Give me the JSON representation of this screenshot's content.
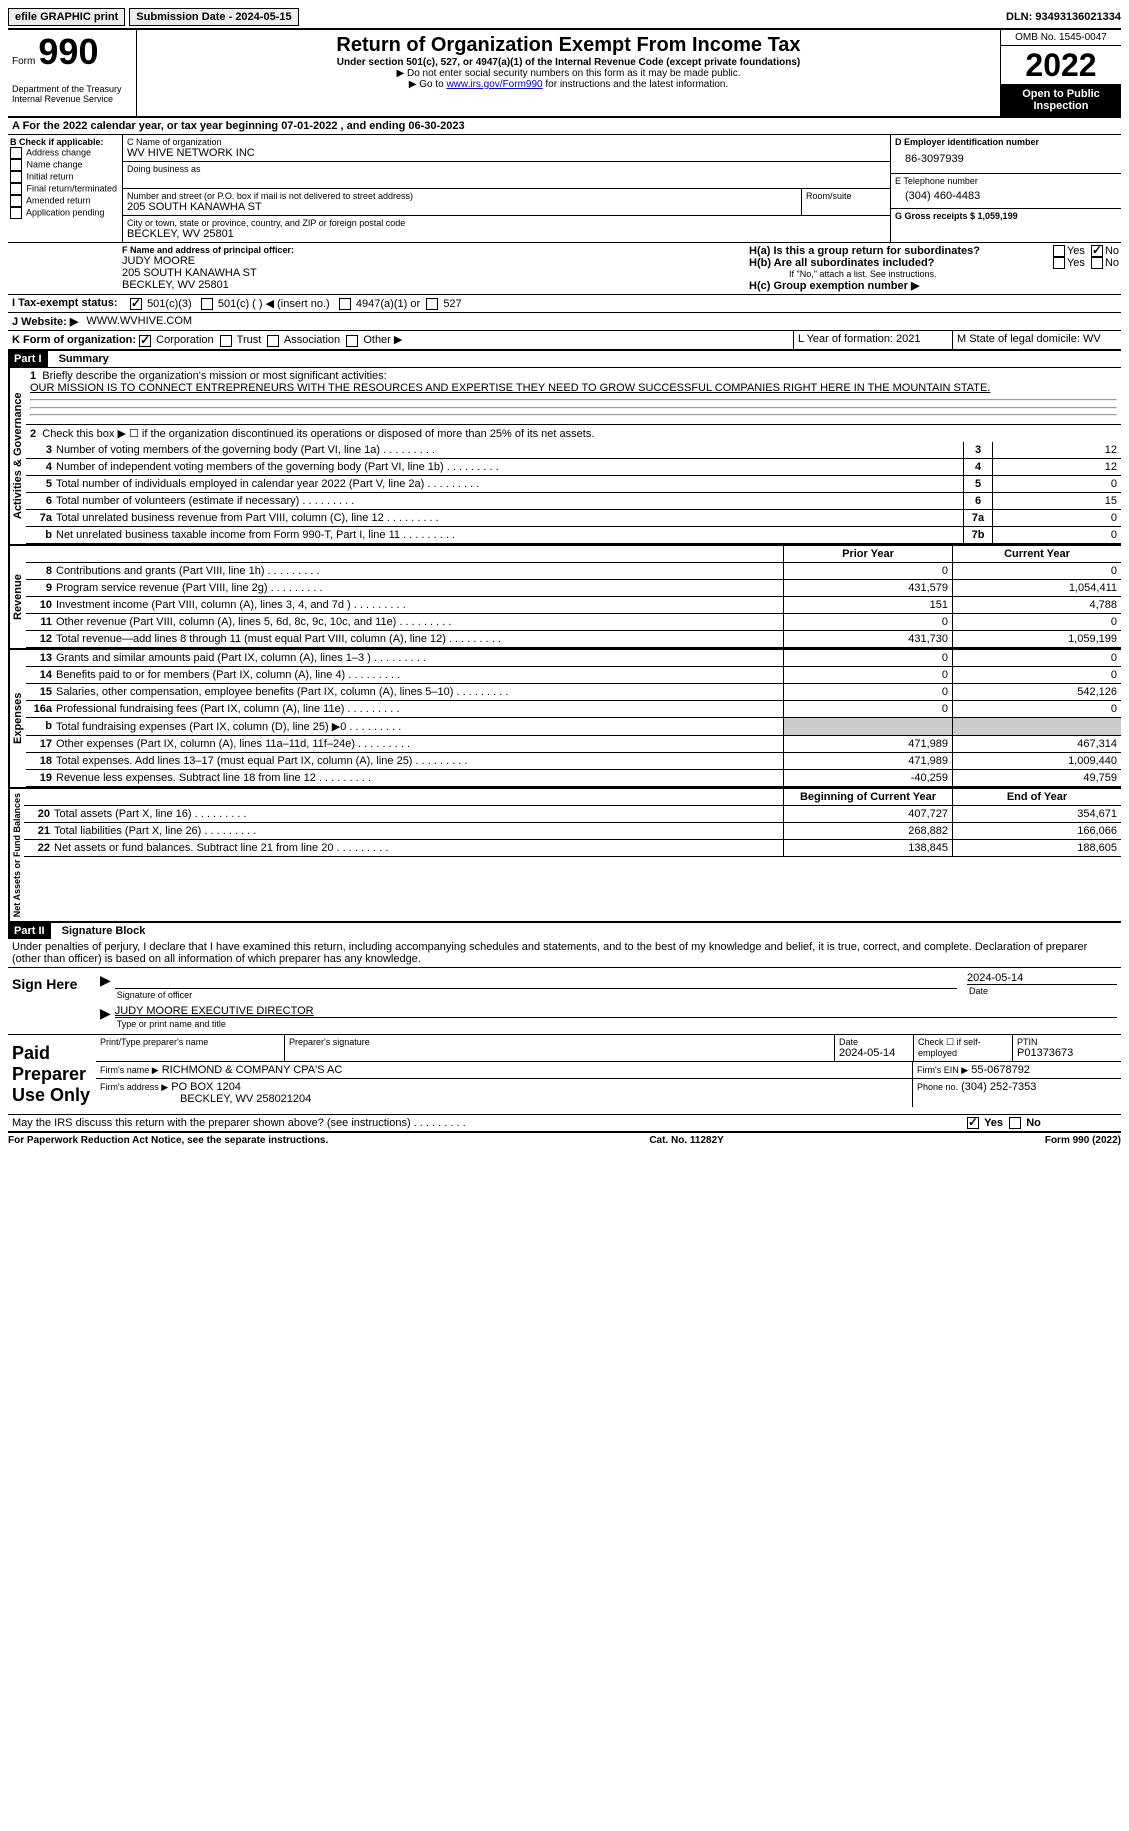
{
  "topbar": {
    "efile": "efile GRAPHIC print",
    "submission_label": "Submission Date - 2024-05-15",
    "dln_label": "DLN: 93493136021334"
  },
  "header": {
    "form_label": "Form",
    "form_number": "990",
    "dept1": "Department of the Treasury",
    "dept2": "Internal Revenue Service",
    "title": "Return of Organization Exempt From Income Tax",
    "sub1": "Under section 501(c), 527, or 4947(a)(1) of the Internal Revenue Code (except private foundations)",
    "sub2": "▶ Do not enter social security numbers on this form as it may be made public.",
    "sub3_pre": "▶ Go to ",
    "sub3_link": "www.irs.gov/Form990",
    "sub3_post": " for instructions and the latest information.",
    "omb": "OMB No. 1545-0047",
    "year": "2022",
    "otp": "Open to Public Inspection"
  },
  "sectionA": {
    "line_a": "A For the 2022 calendar year, or tax year beginning 07-01-2022     , and ending 06-30-2023",
    "b_label": "B Check if applicable:",
    "b_opts": [
      "Address change",
      "Name change",
      "Initial return",
      "Final return/terminated",
      "Amended return",
      "Application pending"
    ],
    "c_label": "C Name of organization",
    "c_name": "WV HIVE NETWORK INC",
    "dba_label": "Doing business as",
    "addr_label": "Number and street (or P.O. box if mail is not delivered to street address)",
    "addr": "205 SOUTH KANAWHA ST",
    "room_label": "Room/suite",
    "city_label": "City or town, state or province, country, and ZIP or foreign postal code",
    "city": "BECKLEY, WV  25801",
    "d_label": "D Employer identification number",
    "d_val": "86-3097939",
    "e_label": "E Telephone number",
    "e_val": "(304) 460-4483",
    "g_label": "G Gross receipts $ 1,059,199",
    "f_label": "F  Name and address of principal officer:",
    "f_name": "JUDY MOORE",
    "f_addr1": "205 SOUTH KANAWHA ST",
    "f_addr2": "BECKLEY, WV  25801",
    "h_a": "H(a)  Is this a group return for subordinates?",
    "h_b": "H(b)  Are all subordinates included?",
    "h_note": "If \"No,\" attach a list. See instructions.",
    "h_c": "H(c)  Group exemption number ▶",
    "yes": "Yes",
    "no": "No",
    "i_label": "I    Tax-exempt status:",
    "i_501c3": "501(c)(3)",
    "i_501c": "501(c) (  ) ◀ (insert no.)",
    "i_4947": "4947(a)(1) or",
    "i_527": "527",
    "j_label": "J   Website: ▶",
    "j_val": "WWW.WVHIVE.COM",
    "k_label": "K Form of organization:",
    "k_corp": "Corporation",
    "k_trust": "Trust",
    "k_assoc": "Association",
    "k_other": "Other ▶",
    "l_label": "L Year of formation: 2021",
    "m_label": "M State of legal domicile: WV"
  },
  "part1": {
    "hdr": "Part I",
    "title": "Summary",
    "q1": "Briefly describe the organization's mission or most significant activities:",
    "mission": "OUR MISSION IS TO CONNECT ENTREPRENEURS WITH THE RESOURCES AND EXPERTISE THEY NEED TO GROW SUCCESSFUL COMPANIES RIGHT HERE IN THE MOUNTAIN STATE.",
    "q2": "Check this box ▶ ☐ if the organization discontinued its operations or disposed of more than 25% of its net assets.",
    "rows_ag": [
      {
        "n": "3",
        "d": "Number of voting members of the governing body (Part VI, line 1a)",
        "box": "3",
        "v": "12"
      },
      {
        "n": "4",
        "d": "Number of independent voting members of the governing body (Part VI, line 1b)",
        "box": "4",
        "v": "12"
      },
      {
        "n": "5",
        "d": "Total number of individuals employed in calendar year 2022 (Part V, line 2a)",
        "box": "5",
        "v": "0"
      },
      {
        "n": "6",
        "d": "Total number of volunteers (estimate if necessary)",
        "box": "6",
        "v": "15"
      },
      {
        "n": "7a",
        "d": "Total unrelated business revenue from Part VIII, column (C), line 12",
        "box": "7a",
        "v": "0"
      },
      {
        "n": "b",
        "d": "Net unrelated business taxable income from Form 990-T, Part I, line 11",
        "box": "7b",
        "v": "0"
      }
    ],
    "col_hdr1": "Prior Year",
    "col_hdr2": "Current Year",
    "rows_rev": [
      {
        "n": "8",
        "d": "Contributions and grants (Part VIII, line 1h)",
        "v1": "0",
        "v2": "0"
      },
      {
        "n": "9",
        "d": "Program service revenue (Part VIII, line 2g)",
        "v1": "431,579",
        "v2": "1,054,411"
      },
      {
        "n": "10",
        "d": "Investment income (Part VIII, column (A), lines 3, 4, and 7d )",
        "v1": "151",
        "v2": "4,788"
      },
      {
        "n": "11",
        "d": "Other revenue (Part VIII, column (A), lines 5, 6d, 8c, 9c, 10c, and 11e)",
        "v1": "0",
        "v2": "0"
      },
      {
        "n": "12",
        "d": "Total revenue—add lines 8 through 11 (must equal Part VIII, column (A), line 12)",
        "v1": "431,730",
        "v2": "1,059,199"
      }
    ],
    "rows_exp": [
      {
        "n": "13",
        "d": "Grants and similar amounts paid (Part IX, column (A), lines 1–3 )",
        "v1": "0",
        "v2": "0"
      },
      {
        "n": "14",
        "d": "Benefits paid to or for members (Part IX, column (A), line 4)",
        "v1": "0",
        "v2": "0"
      },
      {
        "n": "15",
        "d": "Salaries, other compensation, employee benefits (Part IX, column (A), lines 5–10)",
        "v1": "0",
        "v2": "542,126"
      },
      {
        "n": "16a",
        "d": "Professional fundraising fees (Part IX, column (A), line 11e)",
        "v1": "0",
        "v2": "0"
      },
      {
        "n": "b",
        "d": "Total fundraising expenses (Part IX, column (D), line 25) ▶0",
        "v1": "",
        "v2": "",
        "grey": true
      },
      {
        "n": "17",
        "d": "Other expenses (Part IX, column (A), lines 11a–11d, 11f–24e)",
        "v1": "471,989",
        "v2": "467,314"
      },
      {
        "n": "18",
        "d": "Total expenses. Add lines 13–17 (must equal Part IX, column (A), line 25)",
        "v1": "471,989",
        "v2": "1,009,440"
      },
      {
        "n": "19",
        "d": "Revenue less expenses. Subtract line 18 from line 12",
        "v1": "-40,259",
        "v2": "49,759"
      }
    ],
    "col_hdr3": "Beginning of Current Year",
    "col_hdr4": "End of Year",
    "rows_na": [
      {
        "n": "20",
        "d": "Total assets (Part X, line 16)",
        "v1": "407,727",
        "v2": "354,671"
      },
      {
        "n": "21",
        "d": "Total liabilities (Part X, line 26)",
        "v1": "268,882",
        "v2": "166,066"
      },
      {
        "n": "22",
        "d": "Net assets or fund balances. Subtract line 21 from line 20",
        "v1": "138,845",
        "v2": "188,605"
      }
    ],
    "side_ag": "Activities & Governance",
    "side_rev": "Revenue",
    "side_exp": "Expenses",
    "side_na": "Net Assets or Fund Balances"
  },
  "part2": {
    "hdr": "Part II",
    "title": "Signature Block",
    "decl": "Under penalties of perjury, I declare that I have examined this return, including accompanying schedules and statements, and to the best of my knowledge and belief, it is true, correct, and complete. Declaration of preparer (other than officer) is based on all information of which preparer has any knowledge.",
    "sign_here": "Sign Here",
    "sig_officer": "Signature of officer",
    "sig_date": "2024-05-14",
    "date_lbl": "Date",
    "officer_name": "JUDY MOORE EXECUTIVE DIRECTOR",
    "type_name": "Type or print name and title",
    "paid": "Paid Preparer Use Only",
    "prep_name_lbl": "Print/Type preparer's name",
    "prep_sig_lbl": "Preparer's signature",
    "prep_date_lbl": "Date",
    "prep_date": "2024-05-14",
    "check_self": "Check ☐ if self-employed",
    "ptin_lbl": "PTIN",
    "ptin": "P01373673",
    "firm_name_lbl": "Firm's name      ▶",
    "firm_name": "RICHMOND & COMPANY CPA'S AC",
    "firm_ein_lbl": "Firm's EIN ▶",
    "firm_ein": "55-0678792",
    "firm_addr_lbl": "Firm's address ▶",
    "firm_addr": "PO BOX 1204",
    "firm_addr2": "BECKLEY, WV  258021204",
    "firm_phone_lbl": "Phone no.",
    "firm_phone": "(304) 252-7353",
    "may_irs": "May the IRS discuss this return with the preparer shown above? (see instructions)"
  },
  "footer": {
    "left": "For Paperwork Reduction Act Notice, see the separate instructions.",
    "mid": "Cat. No. 11282Y",
    "right": "Form 990 (2022)"
  }
}
